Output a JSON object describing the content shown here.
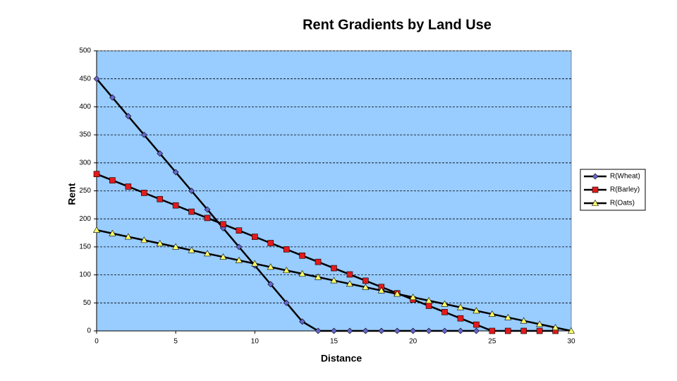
{
  "chart_data": {
    "type": "line",
    "title": "Rent Gradients by Land Use",
    "x_label": "Distance",
    "y_label": "Rent",
    "xlim": [
      0,
      30
    ],
    "xticks": [
      0,
      5,
      10,
      15,
      20,
      25,
      30
    ],
    "ylim": [
      0,
      500
    ],
    "yticks": [
      0,
      50,
      100,
      150,
      200,
      250,
      300,
      350,
      400,
      450,
      500
    ],
    "grid": true,
    "legend": "right",
    "line_color": "#000000",
    "plot_background": "#99ccff",
    "series": [
      {
        "name": "R(Wheat)",
        "color": "#6666cc",
        "marker": "diamond",
        "x": [
          0,
          1,
          2,
          3,
          4,
          5,
          6,
          7,
          8,
          9,
          10,
          11,
          12,
          13,
          14,
          15,
          16,
          17,
          18,
          19,
          20,
          21,
          22,
          23,
          24
        ],
        "values": [
          450,
          416.67,
          383.33,
          350,
          316.67,
          283.33,
          250,
          216.67,
          183.33,
          150,
          116.67,
          83.33,
          50,
          16.67,
          0,
          0,
          0,
          0,
          0,
          0,
          0,
          0,
          0,
          0,
          0
        ]
      },
      {
        "name": "R(Barley)",
        "color": "#e31a1c",
        "marker": "square",
        "x": [
          0,
          1,
          2,
          3,
          4,
          5,
          6,
          7,
          8,
          9,
          10,
          11,
          12,
          13,
          14,
          15,
          16,
          17,
          18,
          19,
          20,
          21,
          22,
          23,
          24,
          25,
          26,
          27,
          28,
          29
        ],
        "values": [
          280,
          268.8,
          257.6,
          246.4,
          235.2,
          224,
          212.8,
          201.6,
          190.4,
          179.2,
          168,
          156.8,
          145.6,
          134.4,
          123.2,
          112,
          100.8,
          89.6,
          78.4,
          67.2,
          56,
          44.8,
          33.6,
          22.4,
          11.2,
          0,
          0,
          0,
          0,
          0
        ]
      },
      {
        "name": "R(Oats)",
        "color": "#ffff66",
        "marker": "triangle",
        "x": [
          0,
          1,
          2,
          3,
          4,
          5,
          6,
          7,
          8,
          9,
          10,
          11,
          12,
          13,
          14,
          15,
          16,
          17,
          18,
          19,
          20,
          21,
          22,
          23,
          24,
          25,
          26,
          27,
          28,
          29,
          30
        ],
        "values": [
          180,
          174,
          168,
          162,
          156,
          150,
          144,
          138,
          132,
          126,
          120,
          114,
          108,
          102,
          96,
          90,
          84,
          78,
          72,
          66,
          60,
          54,
          48,
          42,
          36,
          30,
          24,
          18,
          12,
          6,
          0
        ]
      }
    ]
  }
}
